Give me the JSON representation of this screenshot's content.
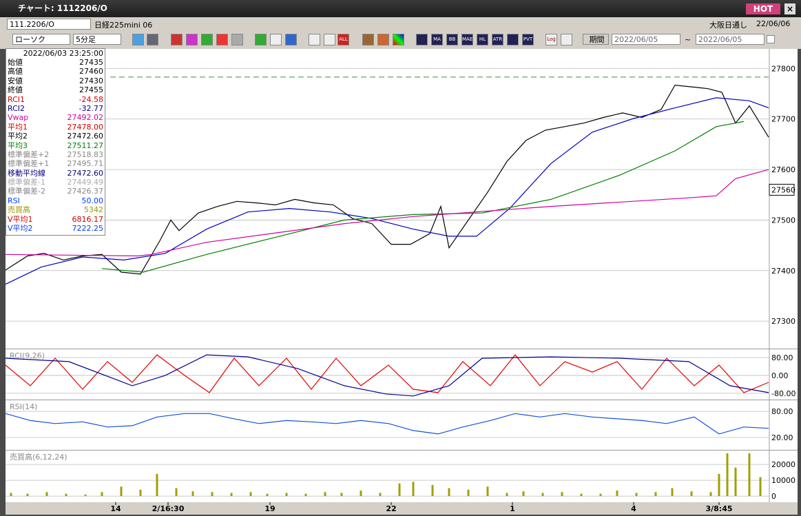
{
  "window": {
    "title": "チャート: 1112206/O",
    "hot": "HOT"
  },
  "toolbar": {
    "symbol": "111.2206/O",
    "name": "日経225mini 06",
    "session": "大阪日通し",
    "date": "22/06/06",
    "chart_kind": "ローソク",
    "interval": "5分足",
    "icon_labels": [
      "ALL",
      "MA",
      "BB",
      "MAE",
      "HL",
      "ATR",
      "PVT",
      "Log"
    ],
    "period": "期間",
    "from": "2022/06/05",
    "tilde": "~",
    "to": "2022/06/05"
  },
  "info": {
    "time": "2022/06/03 23:25:00",
    "rows": [
      {
        "label": "始値",
        "value": "27435",
        "color": "#000"
      },
      {
        "label": "高値",
        "value": "27460",
        "color": "#000"
      },
      {
        "label": "安値",
        "value": "27430",
        "color": "#000"
      },
      {
        "label": "終値",
        "value": "27455",
        "color": "#000"
      },
      {
        "label": "RCI1",
        "value": "-24.58",
        "color": "#d00000"
      },
      {
        "label": "RCI2",
        "value": "-32.77",
        "color": "#000080"
      },
      {
        "label": "Vwap",
        "value": "27492.02",
        "color": "#d000a0"
      },
      {
        "label": "平均1",
        "value": "27478.00",
        "color": "#d00000"
      },
      {
        "label": "平均2",
        "value": "27472.60",
        "color": "#000"
      },
      {
        "label": "平均3",
        "value": "27511.27",
        "color": "#008000"
      },
      {
        "label": "標準偏差+2",
        "value": "27518.83",
        "color": "#888"
      },
      {
        "label": "標準偏差+1",
        "value": "27495.71",
        "color": "#888"
      },
      {
        "label": "移動平均線",
        "value": "27472.60",
        "color": "#000080"
      },
      {
        "label": "標準偏差-1",
        "value": "27449.49",
        "color": "#aaa"
      },
      {
        "label": "標準偏差-2",
        "value": "27426.37",
        "color": "#888"
      },
      {
        "label": "RSI",
        "value": "50.00",
        "color": "#0040ff"
      },
      {
        "label": "売買高",
        "value": "5342",
        "color": "#999900"
      },
      {
        "label": "V平均1",
        "value": "6816.17",
        "color": "#d00000"
      },
      {
        "label": "V平均2",
        "value": "7222.25",
        "color": "#0040ff"
      }
    ]
  },
  "chart_data": [
    {
      "type": "line",
      "ylim": [
        27247,
        27836
      ],
      "yticks": [
        27300,
        27400,
        27500,
        27600,
        27700,
        27800
      ],
      "grid": true,
      "ref_line": {
        "value": 27783,
        "color": "#2a9a2a"
      },
      "last_price": {
        "value": 27560,
        "label": "27560"
      },
      "series": [
        {
          "name": "終値",
          "color": "#000000",
          "x": [
            0,
            8,
            14,
            21,
            28,
            35,
            42,
            49,
            56,
            60,
            63,
            70,
            77,
            84,
            91,
            98,
            105,
            112,
            119,
            126,
            133,
            140,
            147,
            154,
            158,
            161,
            168,
            175,
            182,
            189,
            196,
            203,
            210,
            217,
            224,
            231,
            238,
            243,
            250,
            255,
            260,
            265,
            270,
            277
          ],
          "values": [
            27401,
            27429,
            27434,
            27421,
            27429,
            27432,
            27397,
            27393,
            27459,
            27500,
            27479,
            27514,
            27527,
            27537,
            27534,
            27530,
            27541,
            27534,
            27530,
            27503,
            27493,
            27452,
            27452,
            27473,
            27527,
            27445,
            27500,
            27555,
            27616,
            27658,
            27678,
            27685,
            27692,
            27703,
            27712,
            27703,
            27719,
            27767,
            27763,
            27760,
            27753,
            27692,
            27726,
            27664
          ]
        },
        {
          "name": "移動平均線",
          "color": "#0000c0",
          "x": [
            0,
            13,
            28,
            43,
            58,
            73,
            88,
            103,
            118,
            133,
            148,
            161,
            171,
            183,
            198,
            213,
            228,
            243,
            258,
            270,
            277
          ],
          "values": [
            27373,
            27407,
            27427,
            27421,
            27434,
            27482,
            27516,
            27523,
            27516,
            27503,
            27482,
            27468,
            27468,
            27523,
            27612,
            27674,
            27701,
            27722,
            27742,
            27736,
            27722
          ]
        },
        {
          "name": "平均3",
          "color": "#008000",
          "x": [
            35,
            50,
            73,
            98,
            123,
            148,
            173,
            198,
            223,
            243,
            258,
            268
          ],
          "values": [
            27404,
            27397,
            27432,
            27466,
            27500,
            27511,
            27514,
            27541,
            27589,
            27637,
            27685,
            27695
          ]
        },
        {
          "name": "Vwap",
          "color": "#d000a0",
          "x": [
            0,
            48,
            53,
            73,
            123,
            148,
            198,
            248,
            258,
            265,
            277
          ],
          "values": [
            27432,
            27429,
            27432,
            27456,
            27493,
            27507,
            27527,
            27544,
            27548,
            27582,
            27600
          ]
        }
      ]
    },
    {
      "type": "line",
      "title": "RCI(9,26)",
      "ylim": [
        -102,
        114
      ],
      "yticks": [
        {
          "value": 80,
          "label": "80.00"
        },
        {
          "value": 0,
          "label": "0.00"
        },
        {
          "value": -80,
          "label": "-80.00"
        }
      ],
      "grid": true,
      "series": [
        {
          "name": "RCI1",
          "color": "#e00000",
          "x": [
            0,
            9,
            18,
            28,
            37,
            46,
            55,
            65,
            74,
            83,
            92,
            102,
            111,
            120,
            129,
            139,
            148,
            157,
            166,
            176,
            185,
            194,
            203,
            213,
            222,
            231,
            240,
            250,
            259,
            268,
            277
          ],
          "values": [
            46,
            -46,
            77,
            -62,
            62,
            -31,
            92,
            0,
            -77,
            77,
            -46,
            77,
            -62,
            77,
            -46,
            46,
            -62,
            -77,
            62,
            -46,
            92,
            -46,
            62,
            15,
            62,
            -62,
            77,
            -46,
            46,
            -77,
            -31
          ]
        },
        {
          "name": "RCI2",
          "color": "#000090",
          "x": [
            0,
            23,
            46,
            58,
            73,
            88,
            106,
            123,
            138,
            148,
            161,
            173,
            198,
            223,
            248,
            263,
            277
          ],
          "values": [
            77,
            62,
            -46,
            0,
            92,
            83,
            31,
            -46,
            -83,
            -92,
            -46,
            77,
            83,
            77,
            62,
            -46,
            -77
          ]
        }
      ]
    },
    {
      "type": "line",
      "title": "RSI(14)",
      "ylim": [
        -7,
        104
      ],
      "yticks": [
        {
          "value": 80,
          "label": "80.00"
        },
        {
          "value": 20,
          "label": "20.00"
        }
      ],
      "grid": true,
      "series": [
        {
          "name": "RSI",
          "color": "#1050e0",
          "x": [
            0,
            9,
            18,
            28,
            37,
            46,
            55,
            65,
            74,
            83,
            92,
            102,
            111,
            120,
            129,
            139,
            148,
            157,
            166,
            176,
            185,
            194,
            203,
            213,
            222,
            231,
            240,
            250,
            259,
            268,
            277
          ],
          "values": [
            75,
            59,
            52,
            56,
            44,
            47,
            67,
            75,
            75,
            63,
            52,
            59,
            56,
            52,
            59,
            52,
            36,
            28,
            44,
            59,
            75,
            67,
            75,
            67,
            63,
            59,
            52,
            67,
            28,
            44,
            41
          ]
        }
      ]
    },
    {
      "type": "bar",
      "title": "売買高(6,12,24)",
      "ylim": [
        -3000,
        28300
      ],
      "yticks": [
        20000,
        10000,
        0
      ],
      "grid": true,
      "color": "#a0a000",
      "xlim": [
        0,
        277
      ],
      "xticks": [
        {
          "value": 40,
          "label": "14"
        },
        {
          "value": 59,
          "label": "2/16:30"
        },
        {
          "value": 96,
          "label": "19"
        },
        {
          "value": 140,
          "label": "22"
        },
        {
          "value": 184,
          "label": "1"
        },
        {
          "value": 228,
          "label": "4"
        },
        {
          "value": 259,
          "label": "3/8:45"
        }
      ],
      "x": [
        2,
        8,
        15,
        22,
        29,
        35,
        42,
        49,
        55,
        62,
        68,
        75,
        82,
        89,
        95,
        102,
        109,
        116,
        122,
        129,
        136,
        143,
        148,
        155,
        161,
        168,
        175,
        182,
        188,
        195,
        202,
        209,
        216,
        222,
        229,
        236,
        242,
        249,
        256,
        259,
        262,
        265,
        270,
        274
      ],
      "values": [
        2000,
        1500,
        2500,
        1500,
        1000,
        2500,
        6000,
        4000,
        14000,
        5000,
        3000,
        2500,
        2000,
        2500,
        1500,
        2000,
        1500,
        2500,
        2000,
        3500,
        2000,
        8000,
        9000,
        7000,
        5000,
        4000,
        6000,
        2000,
        3000,
        2000,
        2500,
        1500,
        1500,
        3500,
        2000,
        2500,
        5000,
        3000,
        2500,
        14000,
        27000,
        18000,
        27000,
        12000
      ]
    }
  ]
}
